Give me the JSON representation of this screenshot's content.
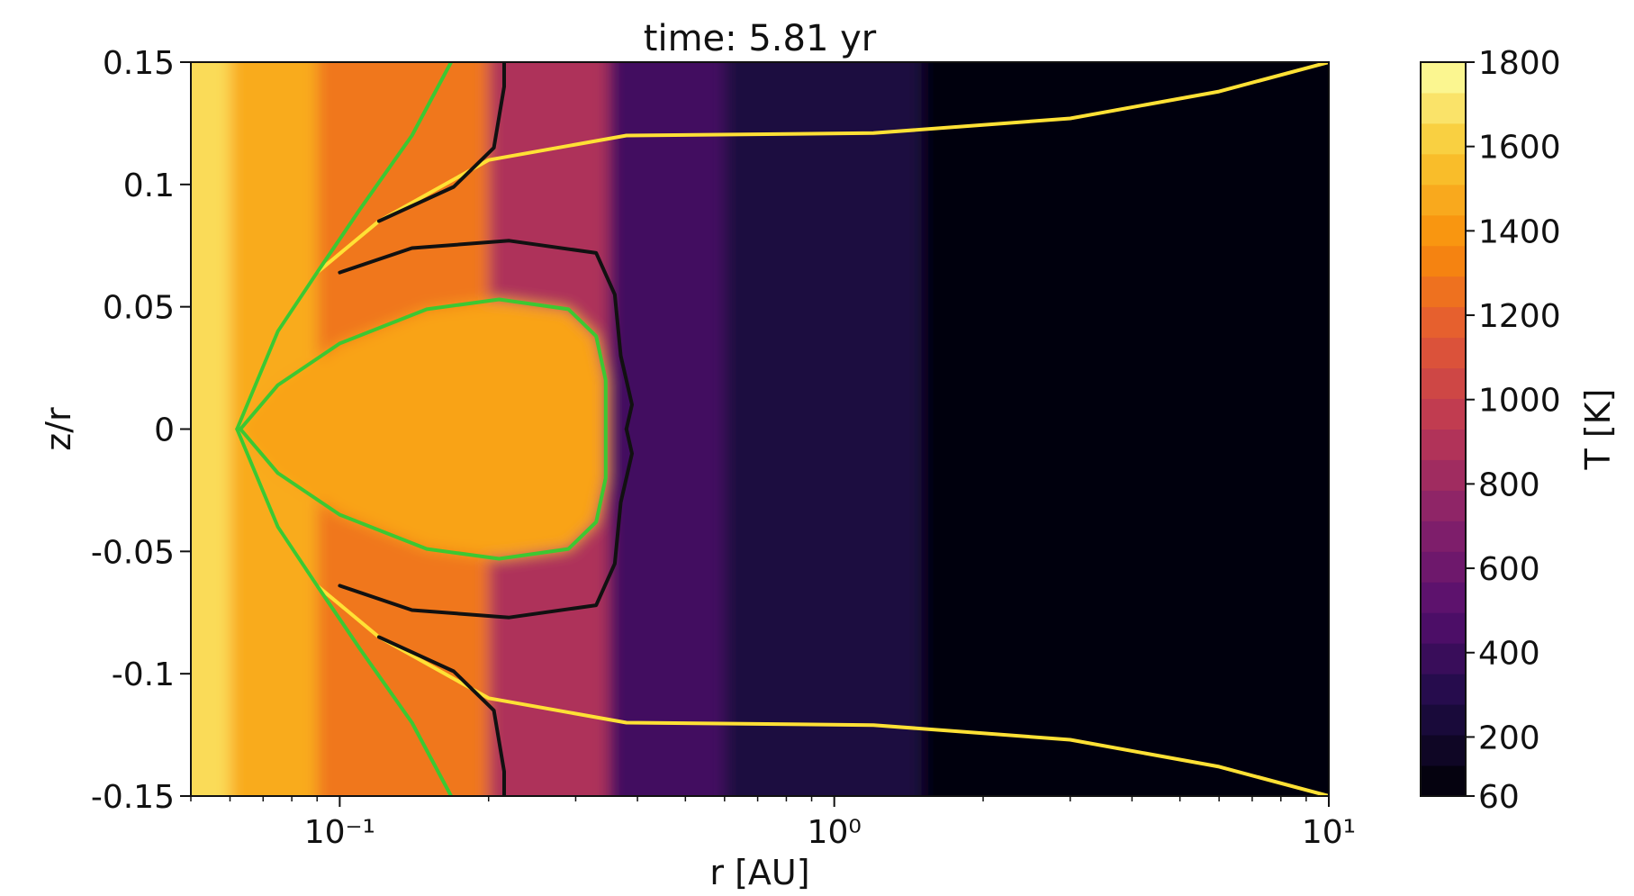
{
  "chart_data": {
    "type": "heatmap",
    "title": "time: 5.81 yr",
    "xlabel": "r [AU]",
    "ylabel": "z/r",
    "x_scale": "log",
    "xlim": [
      0.05,
      10
    ],
    "ylim": [
      -0.15,
      0.15
    ],
    "x_ticks": [
      {
        "value": 0.1,
        "label": "10⁻¹"
      },
      {
        "value": 1,
        "label": "10⁰"
      },
      {
        "value": 10,
        "label": "10¹"
      }
    ],
    "y_ticks": [
      {
        "value": 0.15,
        "label": "0.15"
      },
      {
        "value": 0.1,
        "label": "0.1"
      },
      {
        "value": 0.05,
        "label": "0.05"
      },
      {
        "value": 0,
        "label": "0"
      },
      {
        "value": -0.05,
        "label": "-0.05"
      },
      {
        "value": -0.1,
        "label": "-0.1"
      },
      {
        "value": -0.15,
        "label": "-0.15"
      }
    ],
    "colorbar": {
      "label": "T [K]",
      "colormap": "inferno",
      "range": [
        60,
        1800
      ],
      "ticks": [
        {
          "value": 1800,
          "label": "1800"
        },
        {
          "value": 1600,
          "label": "1600"
        },
        {
          "value": 1400,
          "label": "1400"
        },
        {
          "value": 1200,
          "label": "1200"
        },
        {
          "value": 1000,
          "label": "1000"
        },
        {
          "value": 800,
          "label": "800"
        },
        {
          "value": 600,
          "label": "600"
        },
        {
          "value": 400,
          "label": "400"
        },
        {
          "value": 200,
          "label": "200"
        },
        {
          "value": 60,
          "label": "60"
        }
      ]
    },
    "temperature_regions": [
      {
        "r_max": 0.06,
        "T": 1660
      },
      {
        "r_max": 0.09,
        "T": 1480
      },
      {
        "r_max": 0.2,
        "T": 1280
      },
      {
        "r_max": 0.35,
        "T": 880
      },
      {
        "r_max": 0.6,
        "T": 420
      },
      {
        "r_max": 1.5,
        "T": 260
      },
      {
        "r_max": 10,
        "T": 90
      }
    ],
    "hot_midplane_T": 1450,
    "contours": [
      {
        "color": "#ffe135",
        "points_upper": [
          [
            0.062,
            0.0
          ],
          [
            0.075,
            0.04
          ],
          [
            0.09,
            0.064
          ],
          [
            0.12,
            0.085
          ],
          [
            0.2,
            0.11
          ],
          [
            0.38,
            0.12
          ],
          [
            1.2,
            0.121
          ],
          [
            3,
            0.127
          ],
          [
            6,
            0.138
          ],
          [
            10,
            0.15
          ]
        ],
        "mirror": true
      },
      {
        "color": "#111111",
        "points_upper": [
          [
            0.1,
            0.064
          ],
          [
            0.14,
            0.074
          ],
          [
            0.22,
            0.077
          ],
          [
            0.33,
            0.072
          ],
          [
            0.36,
            0.055
          ],
          [
            0.37,
            0.03
          ],
          [
            0.39,
            0.01
          ],
          [
            0.38,
            0.0
          ]
        ],
        "mirror": true
      },
      {
        "color": "#111111",
        "points_upper": [
          [
            0.12,
            0.085
          ],
          [
            0.17,
            0.099
          ],
          [
            0.205,
            0.115
          ],
          [
            0.215,
            0.14
          ],
          [
            0.215,
            0.15
          ]
        ],
        "mirror": true
      },
      {
        "color": "#3cc832",
        "points_upper": [
          [
            0.062,
            0.0
          ],
          [
            0.075,
            0.04
          ],
          [
            0.09,
            0.064
          ],
          [
            0.11,
            0.09
          ],
          [
            0.14,
            0.12
          ],
          [
            0.168,
            0.15
          ]
        ],
        "mirror": true
      },
      {
        "color": "#3cc832",
        "points_upper": [
          [
            0.063,
            0.0
          ],
          [
            0.075,
            0.018
          ],
          [
            0.1,
            0.035
          ],
          [
            0.15,
            0.049
          ],
          [
            0.21,
            0.053
          ],
          [
            0.29,
            0.049
          ],
          [
            0.33,
            0.038
          ],
          [
            0.345,
            0.02
          ],
          [
            0.345,
            0.0
          ]
        ],
        "mirror": true
      }
    ]
  }
}
